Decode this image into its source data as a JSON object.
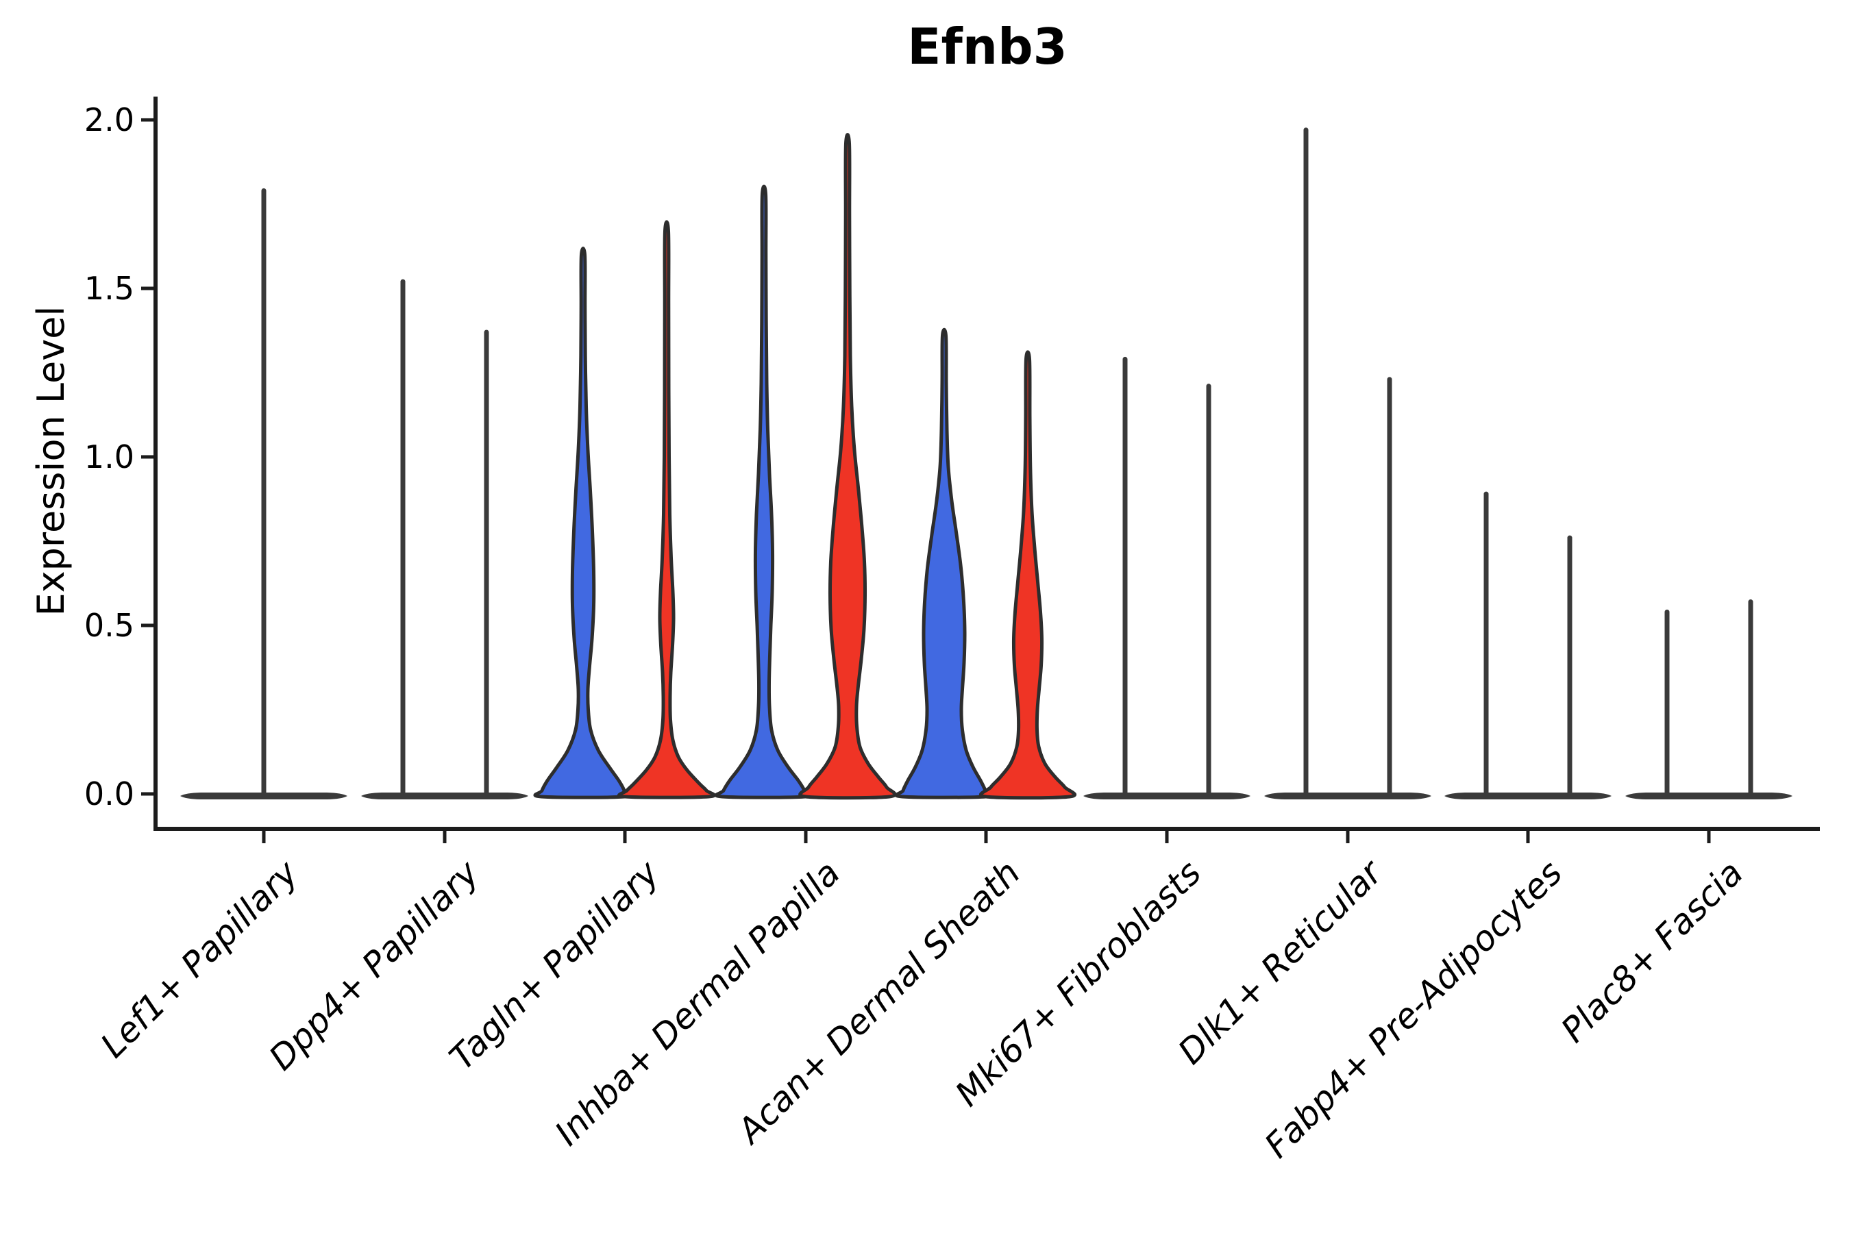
{
  "title": "Efnb3",
  "y_axis": {
    "label": "Expression Level",
    "ticks": [
      {
        "label": "2.0",
        "value": 2.0
      },
      {
        "label": "1.5",
        "value": 1.5
      },
      {
        "label": "1.0",
        "value": 1.0
      },
      {
        "label": "0.5",
        "value": 0.5
      },
      {
        "label": "0.0",
        "value": 0.0
      }
    ]
  },
  "categories": [
    "Lef1+ Papillary",
    "Dpp4+ Papillary",
    "Tagln+ Papillary",
    "Inhba+ Dermal Papilla",
    "Acan+ Dermal Sheath",
    "Mki67+ Fibroblasts",
    "Dlk1+ Reticular",
    "Fabp4+ Pre-Adipocytes",
    "Plac8+ Fascia"
  ],
  "colors": {
    "blue": "#4169E1",
    "red": "#EF3425",
    "flat": "#3a3a3a",
    "outline": "#2d2d2d",
    "axis": "#1c1c1c"
  },
  "violins": [
    {
      "category": 0,
      "side": "center",
      "fill": "flat",
      "flat": true,
      "max": 1.79
    },
    {
      "category": 1,
      "side": "left",
      "fill": "blue",
      "flat": true,
      "max": 1.52
    },
    {
      "category": 1,
      "side": "right",
      "fill": "red",
      "flat": true,
      "max": 1.37
    },
    {
      "category": 2,
      "side": "left",
      "fill": "blue",
      "flat": false,
      "max": 1.6,
      "profile": [
        [
          1.6,
          2.5
        ],
        [
          1.45,
          2.8
        ],
        [
          1.3,
          3.2
        ],
        [
          1.15,
          4.5
        ],
        [
          1.02,
          7
        ],
        [
          0.9,
          10.5
        ],
        [
          0.78,
          13.5
        ],
        [
          0.66,
          15.5
        ],
        [
          0.56,
          15.5
        ],
        [
          0.46,
          13
        ],
        [
          0.38,
          9.5
        ],
        [
          0.31,
          7
        ],
        [
          0.25,
          7.5
        ],
        [
          0.19,
          11
        ],
        [
          0.13,
          22
        ],
        [
          0.08,
          38
        ],
        [
          0.04,
          52
        ],
        [
          0.01,
          60
        ],
        [
          0,
          61
        ]
      ]
    },
    {
      "category": 2,
      "side": "right",
      "fill": "red",
      "flat": false,
      "max": 1.67,
      "profile": [
        [
          1.67,
          2.5
        ],
        [
          1.45,
          2.8
        ],
        [
          1.2,
          3
        ],
        [
          1.0,
          3.5
        ],
        [
          0.83,
          4.5
        ],
        [
          0.7,
          6.5
        ],
        [
          0.6,
          9
        ],
        [
          0.52,
          10
        ],
        [
          0.44,
          8.5
        ],
        [
          0.36,
          6
        ],
        [
          0.29,
          5
        ],
        [
          0.22,
          5.5
        ],
        [
          0.16,
          9
        ],
        [
          0.11,
          17
        ],
        [
          0.07,
          30
        ],
        [
          0.03,
          48
        ],
        [
          0.01,
          58
        ],
        [
          0,
          61
        ]
      ]
    },
    {
      "category": 3,
      "side": "left",
      "fill": "blue",
      "flat": false,
      "max": 1.78,
      "profile": [
        [
          1.78,
          2.5
        ],
        [
          1.6,
          2.8
        ],
        [
          1.4,
          3.2
        ],
        [
          1.22,
          4
        ],
        [
          1.08,
          5.5
        ],
        [
          0.95,
          8
        ],
        [
          0.83,
          11
        ],
        [
          0.72,
          12.5
        ],
        [
          0.6,
          12
        ],
        [
          0.5,
          10
        ],
        [
          0.41,
          8.5
        ],
        [
          0.33,
          7.5
        ],
        [
          0.26,
          8
        ],
        [
          0.19,
          11
        ],
        [
          0.13,
          20
        ],
        [
          0.08,
          35
        ],
        [
          0.04,
          50
        ],
        [
          0.01,
          59
        ],
        [
          0,
          61
        ]
      ]
    },
    {
      "category": 3,
      "side": "right",
      "fill": "red",
      "flat": false,
      "max": 1.93,
      "profile": [
        [
          1.93,
          2.5
        ],
        [
          1.72,
          2.8
        ],
        [
          1.5,
          3.2
        ],
        [
          1.3,
          4
        ],
        [
          1.15,
          6
        ],
        [
          1.02,
          10
        ],
        [
          0.9,
          16
        ],
        [
          0.79,
          21
        ],
        [
          0.69,
          24.5
        ],
        [
          0.59,
          25.5
        ],
        [
          0.49,
          24
        ],
        [
          0.4,
          20
        ],
        [
          0.32,
          15.5
        ],
        [
          0.26,
          13
        ],
        [
          0.2,
          13.5
        ],
        [
          0.14,
          18
        ],
        [
          0.09,
          30
        ],
        [
          0.05,
          45
        ],
        [
          0.02,
          57
        ],
        [
          0,
          61
        ]
      ]
    },
    {
      "category": 4,
      "side": "left",
      "fill": "blue",
      "flat": false,
      "max": 1.36,
      "profile": [
        [
          1.36,
          2.5
        ],
        [
          1.22,
          3
        ],
        [
          1.08,
          4
        ],
        [
          0.97,
          6
        ],
        [
          0.87,
          11
        ],
        [
          0.77,
          18
        ],
        [
          0.67,
          24.5
        ],
        [
          0.57,
          28.5
        ],
        [
          0.48,
          30
        ],
        [
          0.39,
          29
        ],
        [
          0.31,
          26.5
        ],
        [
          0.25,
          25
        ],
        [
          0.19,
          26.5
        ],
        [
          0.13,
          32
        ],
        [
          0.08,
          42
        ],
        [
          0.04,
          53
        ],
        [
          0.01,
          60
        ],
        [
          0,
          61
        ]
      ]
    },
    {
      "category": 4,
      "side": "right",
      "fill": "red",
      "flat": false,
      "max": 1.29,
      "profile": [
        [
          1.29,
          2.5
        ],
        [
          1.12,
          3
        ],
        [
          0.97,
          3.8
        ],
        [
          0.84,
          6
        ],
        [
          0.73,
          10
        ],
        [
          0.63,
          14.5
        ],
        [
          0.54,
          18.5
        ],
        [
          0.46,
          20.5
        ],
        [
          0.38,
          19.5
        ],
        [
          0.31,
          16.5
        ],
        [
          0.25,
          14
        ],
        [
          0.19,
          13.5
        ],
        [
          0.14,
          16
        ],
        [
          0.09,
          25
        ],
        [
          0.05,
          40
        ],
        [
          0.02,
          54
        ],
        [
          0,
          61
        ]
      ]
    },
    {
      "category": 5,
      "side": "left",
      "fill": "blue",
      "flat": true,
      "max": 1.29
    },
    {
      "category": 5,
      "side": "right",
      "fill": "red",
      "flat": true,
      "max": 1.21
    },
    {
      "category": 6,
      "side": "left",
      "fill": "blue",
      "flat": true,
      "max": 1.97
    },
    {
      "category": 6,
      "side": "right",
      "fill": "red",
      "flat": true,
      "max": 1.23
    },
    {
      "category": 7,
      "side": "left",
      "fill": "blue",
      "flat": true,
      "max": 0.89
    },
    {
      "category": 7,
      "side": "right",
      "fill": "red",
      "flat": true,
      "max": 0.76
    },
    {
      "category": 8,
      "side": "left",
      "fill": "blue",
      "flat": true,
      "max": 0.54
    },
    {
      "category": 8,
      "side": "right",
      "fill": "red",
      "flat": true,
      "max": 0.57
    }
  ],
  "chart_data": {
    "type": "violin",
    "title": "Efnb3",
    "xlabel": "",
    "ylabel": "Expression Level",
    "ylim": [
      0,
      2.05
    ],
    "yticks": [
      0.0,
      0.5,
      1.0,
      1.5,
      2.0
    ],
    "grid": false,
    "legend_position": "none",
    "categories": [
      "Lef1+ Papillary",
      "Dpp4+ Papillary",
      "Tagln+ Papillary",
      "Inhba+ Dermal Papilla",
      "Acan+ Dermal Sheath",
      "Mki67+ Fibroblasts",
      "Dlk1+ Reticular",
      "Fabp4+ Pre-Adipocytes",
      "Plac8+ Fascia"
    ],
    "series": [
      {
        "name": "blue",
        "color": "#4169E1",
        "max_expression": [
          1.79,
          1.52,
          1.6,
          1.78,
          1.36,
          1.29,
          1.97,
          0.89,
          0.54
        ],
        "has_expressing_body": [
          false,
          false,
          true,
          true,
          true,
          false,
          false,
          false,
          false
        ]
      },
      {
        "name": "red",
        "color": "#EF3425",
        "max_expression": [
          null,
          1.37,
          1.67,
          1.93,
          1.29,
          1.21,
          1.23,
          0.76,
          0.57
        ],
        "has_expressing_body": [
          false,
          false,
          true,
          true,
          true,
          false,
          false,
          false,
          false
        ]
      }
    ],
    "single_violin_categories": [
      0
    ],
    "bulk_at_zero": true
  }
}
